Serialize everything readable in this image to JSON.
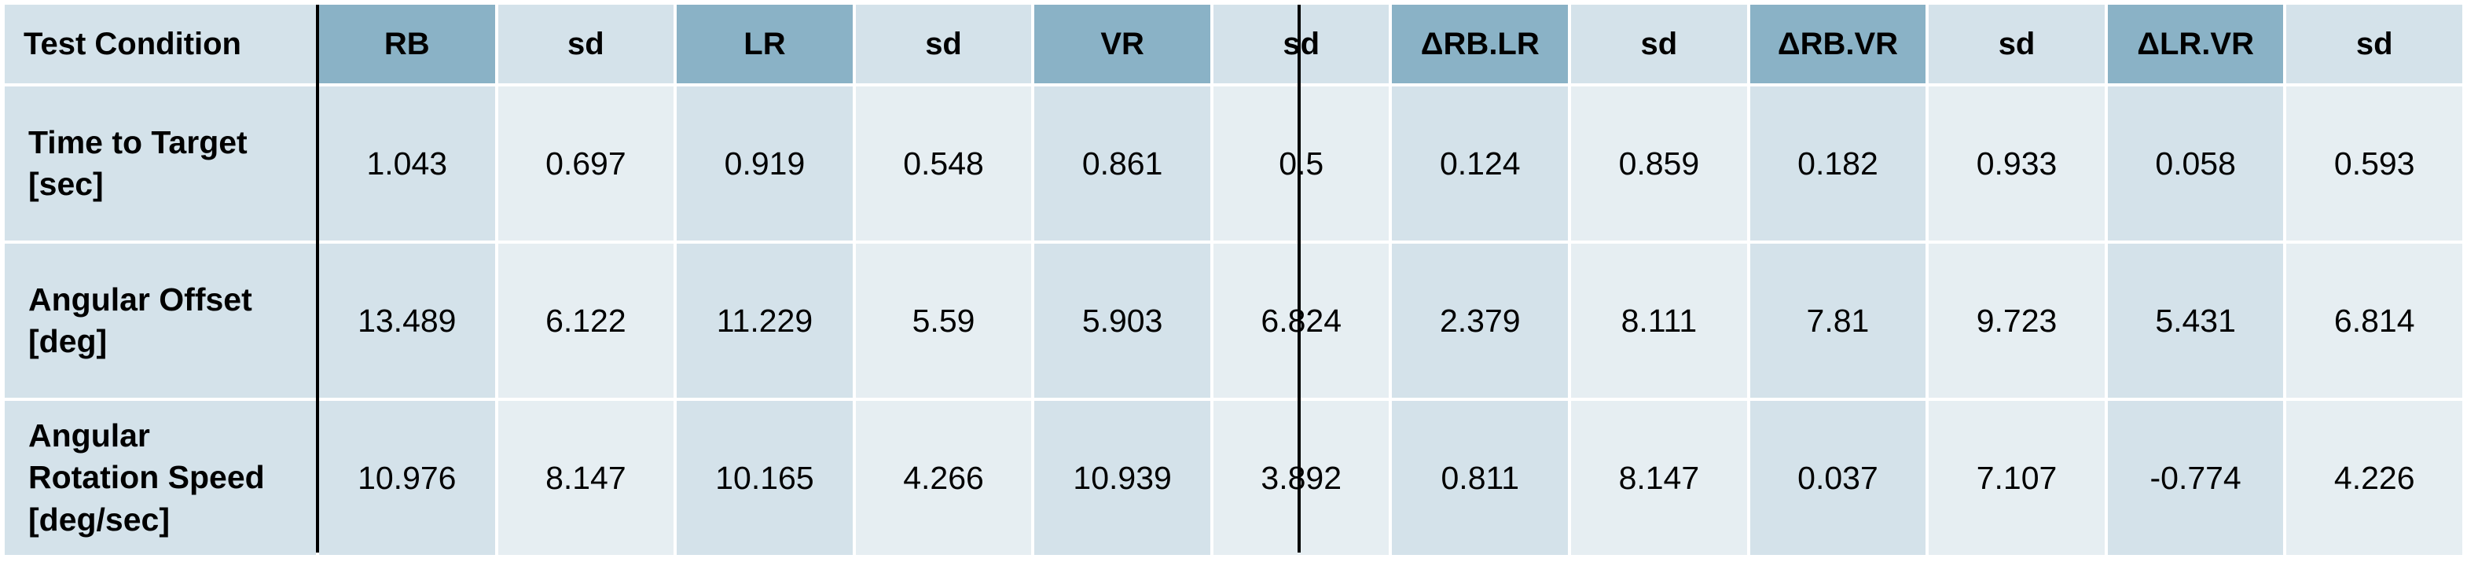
{
  "table": {
    "headers": [
      "Test Condition",
      "RB",
      "sd",
      "LR",
      "sd",
      "VR",
      "sd",
      "ΔRB.LR",
      "sd",
      "ΔRB.VR",
      "sd",
      "ΔLR.VR",
      "sd"
    ],
    "rows": [
      {
        "label": "Time to Target\n[sec]",
        "values": [
          "1.043",
          "0.697",
          "0.919",
          "0.548",
          "0.861",
          "0.5",
          "0.124",
          "0.859",
          "0.182",
          "0.933",
          "0.058",
          "0.593"
        ]
      },
      {
        "label": "Angular Offset\n[deg]",
        "values": [
          "13.489",
          "6.122",
          "11.229",
          "5.59",
          "5.903",
          "6.824",
          "2.379",
          "8.111",
          "7.81",
          "9.723",
          "5.431",
          "6.814"
        ]
      },
      {
        "label": "Angular\nRotation Speed\n[deg/sec]",
        "values": [
          "10.976",
          "8.147",
          "10.165",
          "4.266",
          "10.939",
          "3.892",
          "0.811",
          "8.147",
          "0.037",
          "7.107",
          "-0.774",
          "4.226"
        ]
      }
    ]
  }
}
